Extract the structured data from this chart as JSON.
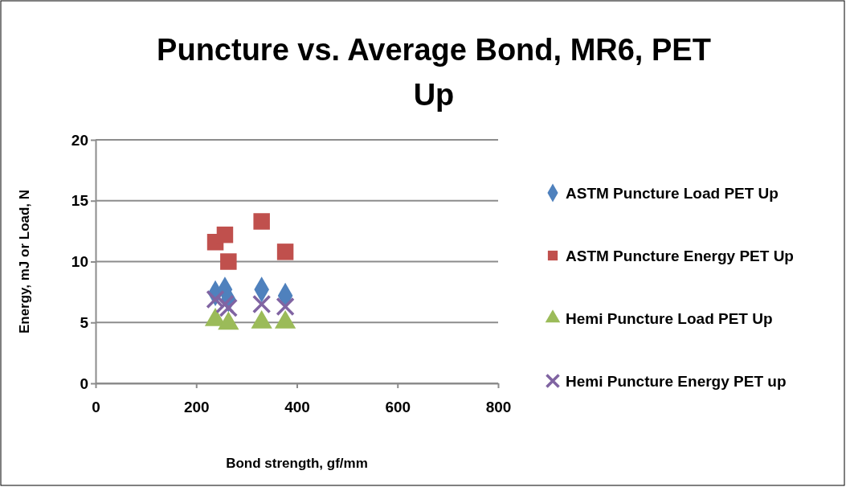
{
  "chart_data": {
    "type": "scatter",
    "title": "Puncture vs. Average Bond, MR6, PET Up",
    "xlabel": "Bond strength, gf/mm",
    "ylabel": "Energy, mJ or Load, N",
    "xlim": [
      0,
      800
    ],
    "xticks": [
      0,
      200,
      400,
      600,
      800
    ],
    "ylim": [
      0,
      20
    ],
    "yticks": [
      0,
      5,
      10,
      15,
      20
    ],
    "grid": "y",
    "legend": "right",
    "series": [
      {
        "name": "ASTM Puncture Load PET Up",
        "color": "#4f81bd",
        "marker": "diamond",
        "x": [
          238,
          257,
          264,
          330,
          377
        ],
        "values": [
          7.4,
          7.7,
          6.9,
          7.7,
          7.2
        ]
      },
      {
        "name": "ASTM Puncture Energy PET Up",
        "color": "#c0504d",
        "marker": "square",
        "x": [
          238,
          257,
          264,
          330,
          377
        ],
        "values": [
          11.6,
          12.2,
          10.0,
          13.3,
          10.8
        ]
      },
      {
        "name": "Hemi Puncture Load PET Up",
        "color": "#9bbb59",
        "marker": "triangle",
        "x": [
          238,
          257,
          264,
          330,
          377
        ],
        "values": [
          5.2,
          null,
          4.9,
          5.0,
          5.0
        ]
      },
      {
        "name": "Hemi Puncture Energy PET up",
        "color": "#8064a2",
        "marker": "cross",
        "x": [
          238,
          257,
          264,
          330,
          377
        ],
        "values": [
          6.9,
          6.5,
          6.2,
          6.5,
          6.3
        ]
      }
    ]
  }
}
